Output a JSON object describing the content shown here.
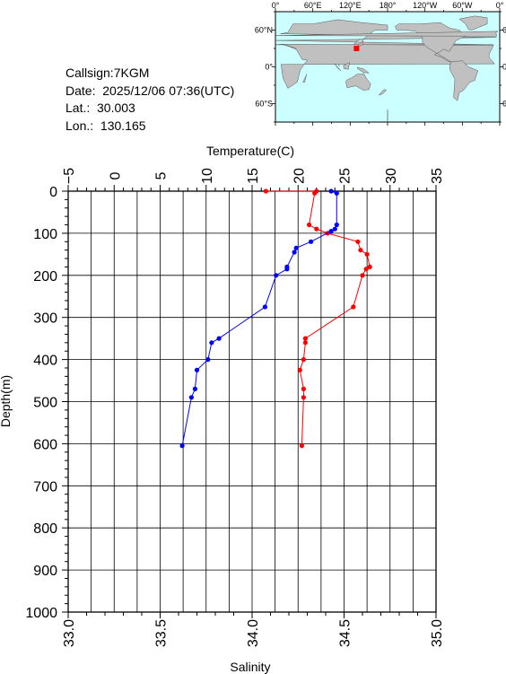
{
  "station": {
    "callsign": "Callsign:7KGM",
    "date": "Date:  2025/12/06 07:36(UTC)",
    "lat": "Lat.:  30.003",
    "lon": "Lon.:  130.165"
  },
  "map": {
    "lon_labels": [
      "0°",
      "60°E",
      "120°E",
      "180°",
      "120°W",
      "60°W",
      "0°"
    ],
    "lat_labels": [
      "60°N",
      "0°",
      "60°S"
    ],
    "station_lon": 130.165,
    "station_lat": 30.003,
    "ocean_color": "#ccffff",
    "land_color": "#c0c0c0",
    "marker_color": "#ff0000"
  },
  "chart_data": {
    "type": "line",
    "title": "",
    "ylabel": "Depth(m)",
    "ylim": [
      0,
      1000
    ],
    "yticks": [
      "0",
      "100",
      "200",
      "300",
      "400",
      "500",
      "600",
      "700",
      "800",
      "900",
      "1000"
    ],
    "top_axis": {
      "label": "Temperature(C)",
      "lim": [
        -5,
        35
      ],
      "ticks": [
        "−5",
        "0",
        "5",
        "10",
        "15",
        "20",
        "25",
        "30",
        "35"
      ]
    },
    "bottom_axis": {
      "label": "Salinity",
      "lim": [
        33.0,
        35.0
      ],
      "ticks": [
        "33.0",
        "33.5",
        "34.0",
        "34.5",
        "35.0"
      ]
    },
    "grid": true,
    "series": [
      {
        "variable": "temperature",
        "color": "#ff0000",
        "depth": [
          0,
          0,
          5,
          80,
          90,
          100,
          120,
          140,
          150,
          180,
          185,
          200,
          275,
          350,
          360,
          400,
          425,
          470,
          490,
          605
        ],
        "value": [
          16.5,
          22.0,
          21.8,
          21.2,
          22.0,
          23.2,
          26.5,
          26.8,
          27.5,
          27.8,
          27.4,
          27.0,
          26.0,
          20.8,
          20.8,
          20.6,
          20.2,
          20.6,
          20.6,
          20.4
        ]
      },
      {
        "variable": "salinity",
        "color": "#0000ff",
        "depth": [
          0,
          5,
          80,
          90,
          95,
          120,
          135,
          145,
          180,
          185,
          200,
          275,
          350,
          360,
          400,
          425,
          470,
          490,
          605
        ],
        "value": [
          34.43,
          34.46,
          34.46,
          34.45,
          34.43,
          34.32,
          34.24,
          34.23,
          34.19,
          34.19,
          34.13,
          34.07,
          33.82,
          33.78,
          33.76,
          33.7,
          33.69,
          33.67,
          33.62
        ]
      }
    ]
  }
}
